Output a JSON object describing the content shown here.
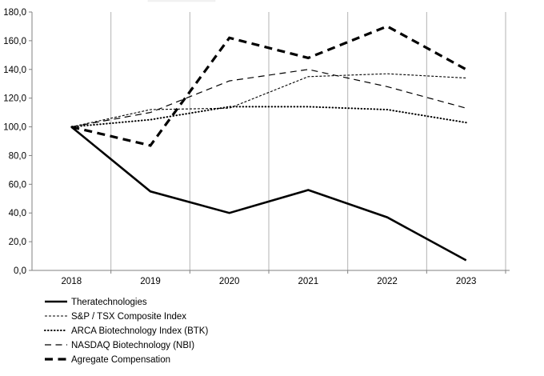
{
  "chart_data": {
    "type": "line",
    "title": "",
    "x": [
      2018,
      2019,
      2020,
      2021,
      2022,
      2023
    ],
    "x_axis": {
      "tick_labels": [
        "2018",
        "2019",
        "2020",
        "2021",
        "2022",
        "2023"
      ]
    },
    "y_axis": {
      "min": 0,
      "max": 180,
      "step": 20,
      "tick_labels": [
        "0,0",
        "20,0",
        "40,0",
        "60,0",
        "80,0",
        "100,0",
        "120,0",
        "140,0",
        "160,0",
        "180,0"
      ],
      "decimal_format": "comma"
    },
    "series": [
      {
        "name": "Theratechnologies",
        "style": "solid-thick",
        "values": [
          100,
          55,
          40,
          56,
          37,
          7
        ]
      },
      {
        "name": "S&P / TSX Composite Index",
        "style": "dash-fine",
        "values": [
          100,
          112,
          113,
          135,
          137,
          134
        ]
      },
      {
        "name": "ARCA Biotechnology Index (BTK)",
        "style": "dotted",
        "values": [
          100,
          105,
          114,
          114,
          112,
          103
        ]
      },
      {
        "name": "NASDAQ Biotechnology (NBI)",
        "style": "dash-medium",
        "values": [
          100,
          110,
          132,
          140,
          128,
          113
        ]
      },
      {
        "name": "Agregate Compensation",
        "style": "dash-bold",
        "values": [
          100,
          87,
          162,
          148,
          170,
          140
        ]
      }
    ],
    "grid": {
      "vertical": true,
      "horizontal": false
    },
    "legend_position": "bottom-left",
    "line_color": "#000000",
    "grid_color": "#b3b3b3",
    "axis_color": "#808080",
    "text_color": "#000000",
    "background": "#ffffff"
  }
}
